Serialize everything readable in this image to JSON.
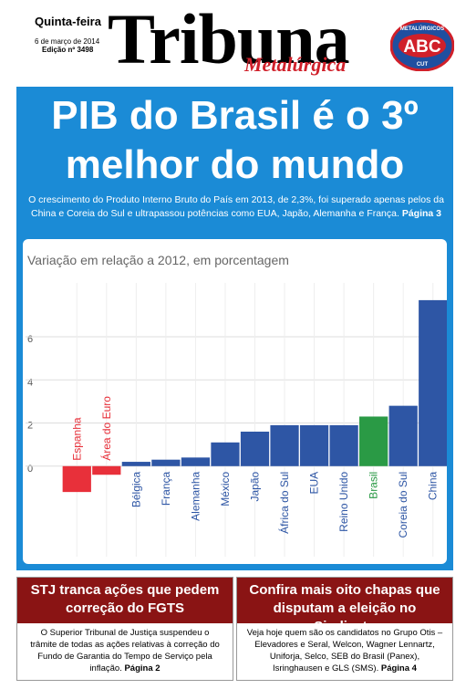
{
  "header": {
    "weekday": "Quinta-feira",
    "date": "6 de março de 2014",
    "edition": "Edição nº 3498",
    "title": "Tribuna",
    "subtitle": "Metalúrgica",
    "logo_top": "METALÚRGICOS",
    "logo_main": "ABC",
    "logo_bottom": "CUT"
  },
  "headline": {
    "title": "PIB do Brasil é o 3º melhor do mundo",
    "lead": "O crescimento do Produto Interno Bruto do País em 2013, de 2,3%, foi superado apenas pelos da China e Coreia do Sul e ultrapassou potências como EUA, Japão, Alemanha e França.",
    "page": "Página 3"
  },
  "chart_data": {
    "type": "bar",
    "title": "Variação em relação a 2012, em porcentagem",
    "categories": [
      "Espanha",
      "Área do Euro",
      "Bélgica",
      "França",
      "Alemanha",
      "México",
      "Japão",
      "África do Sul",
      "EUA",
      "Reino Unido",
      "Brasil",
      "Coreia do Sul",
      "China"
    ],
    "values": [
      -1.2,
      -0.4,
      0.2,
      0.3,
      0.4,
      1.1,
      1.6,
      1.9,
      1.9,
      1.9,
      2.3,
      2.8,
      7.7
    ],
    "colors": [
      "#e8303a",
      "#e8303a",
      "#2e56a5",
      "#2e56a5",
      "#2e56a5",
      "#2e56a5",
      "#2e56a5",
      "#2e56a5",
      "#2e56a5",
      "#2e56a5",
      "#2a9a45",
      "#2e56a5",
      "#2e56a5"
    ],
    "ylim": [
      -4.2,
      8.5
    ],
    "yticks": [
      0,
      2,
      4,
      6
    ],
    "grid": true
  },
  "boxes": [
    {
      "title": "STJ tranca ações que pedem correção do FGTS",
      "body": "O Superior Tribunal de Justiça suspendeu o trâmite de todas as ações relativas à correção do Fundo de Garantia do Tempo de Serviço pela inflação.",
      "page": "Página 2"
    },
    {
      "title": "Confira mais oito chapas que disputam a eleição no Sindicato",
      "body": "Veja hoje quem são os candidatos no Grupo Otis – Elevadores e Seral, Welcon, Wagner Lennartz, Uniforja, Selco, SEB do Brasil (Panex), Isringhausen e GLS (SMS).",
      "page": "Página 4"
    }
  ]
}
